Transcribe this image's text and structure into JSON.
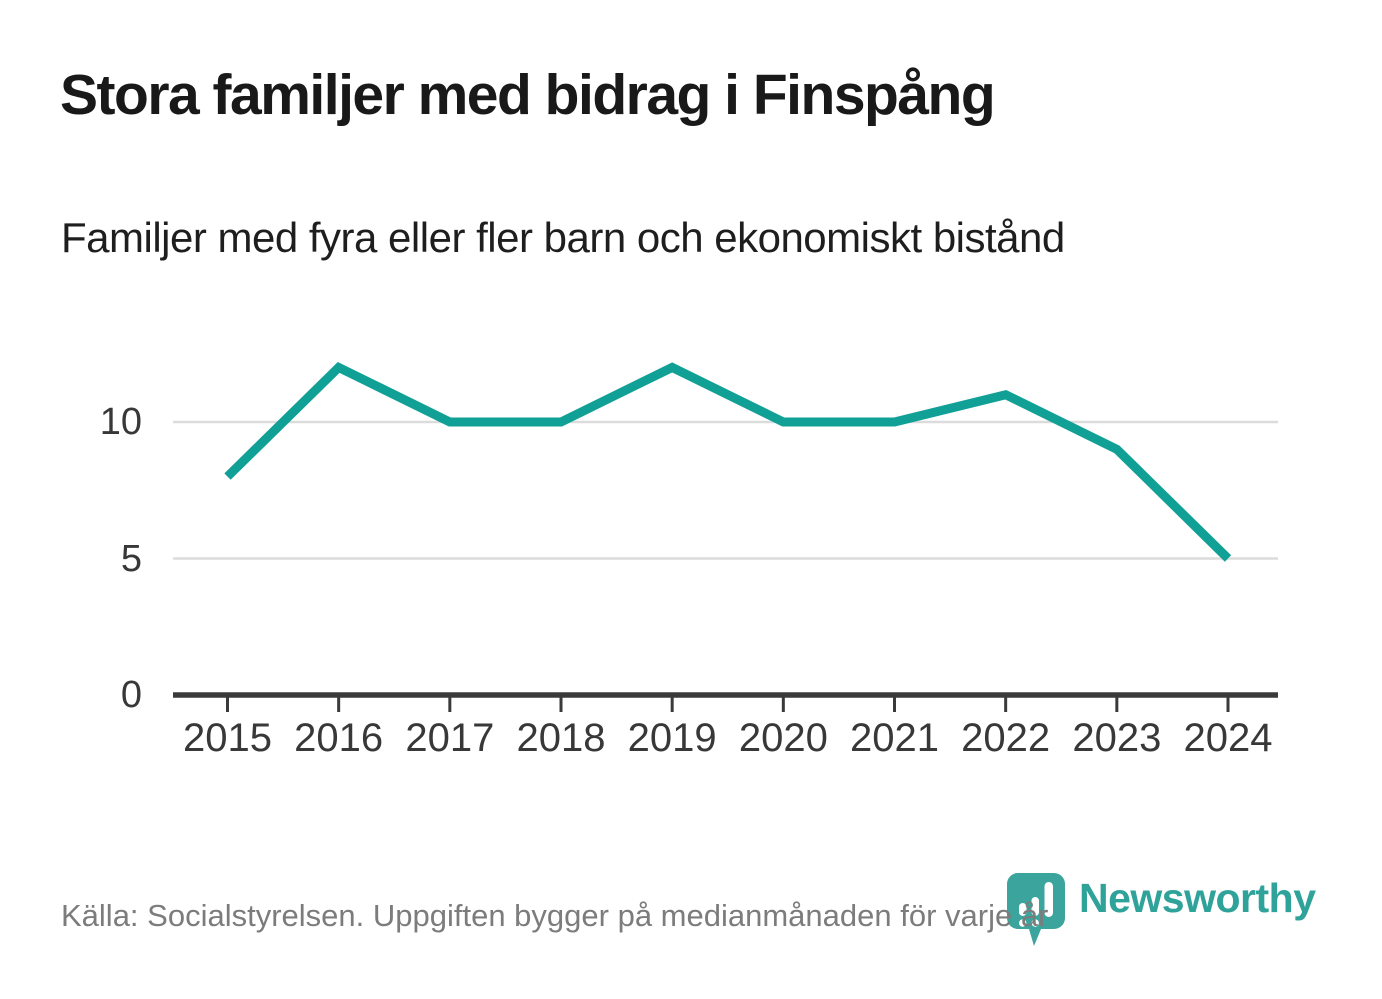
{
  "chart_data": {
    "type": "line",
    "title": "Stora familjer med bidrag i Finspång",
    "subtitle": "Familjer med fyra eller fler barn och ekonomiskt bistånd",
    "categories": [
      "2015",
      "2016",
      "2017",
      "2018",
      "2019",
      "2020",
      "2021",
      "2022",
      "2023",
      "2024"
    ],
    "values": [
      8,
      12,
      10,
      10,
      12,
      10,
      10,
      11,
      9,
      5
    ],
    "xlabel": "",
    "ylabel": "",
    "yticks": [
      0,
      5,
      10
    ],
    "ylim": [
      0,
      13
    ],
    "grid": "horizontal-only",
    "legend": "none",
    "line_color": "#11a096",
    "grid_color": "#dcdcdc",
    "axis_color": "#3a3a3a",
    "tick_label_color": "#383838"
  },
  "footer": {
    "source": "Källa: Socialstyrelsen. Uppgiften bygger på medianmånaden för varje år",
    "brand": "Newsworthy",
    "brand_color": "#2fa29a"
  }
}
